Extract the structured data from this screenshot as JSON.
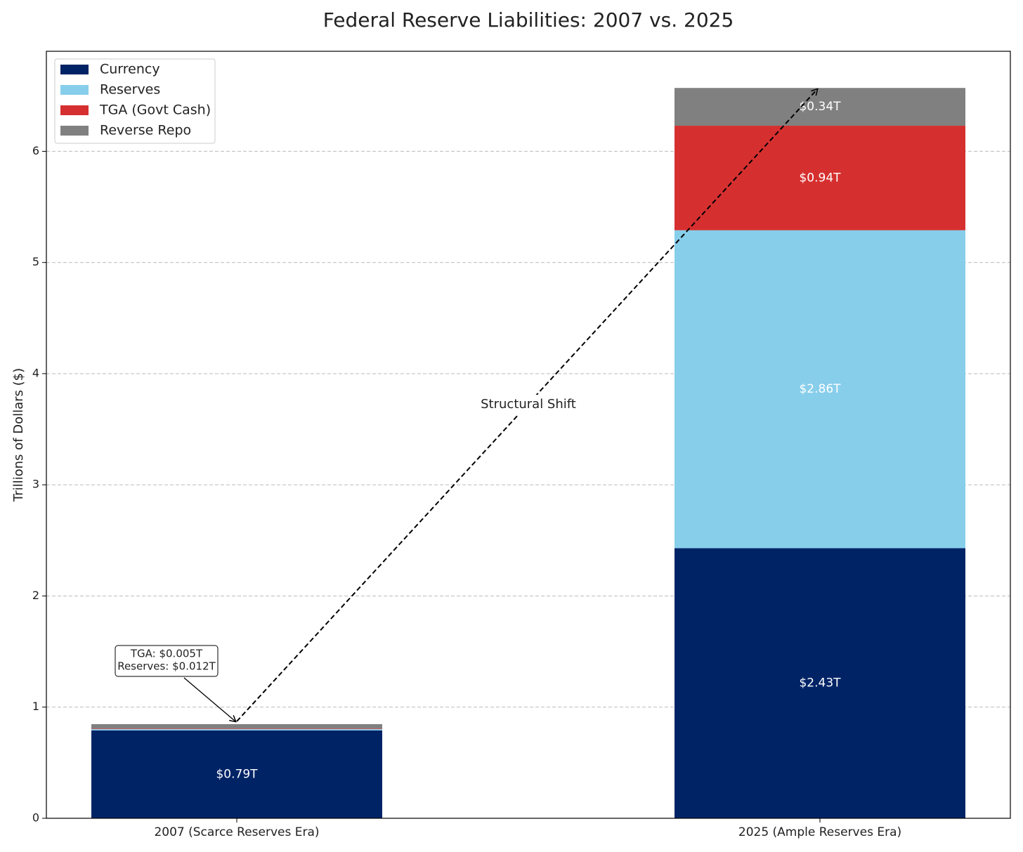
{
  "chart_data": {
    "type": "stacked_bar",
    "title": "Federal Reserve Liabilities: 2007 vs. 2025",
    "y_label": "Trillions of Dollars ($)",
    "categories": [
      "2007 (Scarce Reserves Era)",
      "2025 (Ample Reserves Era)"
    ],
    "series": [
      {
        "name": "Currency",
        "color": "#002366",
        "values": [
          0.79,
          2.43
        ],
        "value_labels": [
          "$0.79T",
          "$2.43T"
        ]
      },
      {
        "name": "Reserves",
        "color": "#87ceeb",
        "values": [
          0.012,
          2.86
        ],
        "value_labels": [
          null,
          "$2.86T"
        ]
      },
      {
        "name": "TGA (Govt Cash)",
        "color": "#d62f2f",
        "values": [
          0.005,
          0.94
        ],
        "value_labels": [
          null,
          "$0.94T"
        ]
      },
      {
        "name": "Reverse Repo",
        "color": "#808080",
        "values": [
          0.04,
          0.34
        ],
        "value_labels": [
          null,
          "$0.34T"
        ]
      }
    ],
    "ylim": [
      0,
      6.9
    ],
    "yticks": [
      0,
      1,
      2,
      3,
      4,
      5,
      6
    ],
    "grid": true,
    "legend": "upper left",
    "annotations": [
      {
        "text": "Structural Shift"
      },
      {
        "lines": [
          "TGA: $0.005T",
          "Reserves: $0.012T"
        ]
      }
    ]
  }
}
